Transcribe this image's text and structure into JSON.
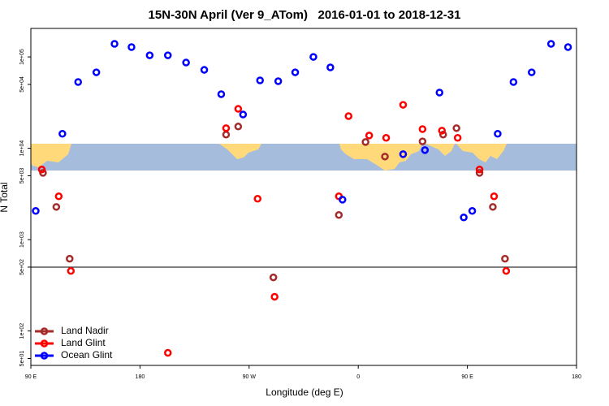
{
  "chart_data": {
    "type": "scatter",
    "title": "15N-30N April (Ver 9_ATom)   2016-01-01 to 2018-12-31",
    "x_label": "Longitude (deg E)",
    "y_label": "N Total",
    "log_y": true,
    "xlim": [
      90,
      540
    ],
    "ylim": [
      42,
      205000
    ],
    "xticks": [
      {
        "value": 90,
        "label": "90 E"
      },
      {
        "value": 180,
        "label": "180"
      },
      {
        "value": 270,
        "label": "90 W"
      },
      {
        "value": 360,
        "label": "0"
      },
      {
        "value": 450,
        "label": "90 E"
      },
      {
        "value": 540,
        "label": "180"
      }
    ],
    "yticks": [
      {
        "value": 50,
        "label": "5e+01"
      },
      {
        "value": 100,
        "label": "1e+02"
      },
      {
        "value": 500,
        "label": "5e+02"
      },
      {
        "value": 1000,
        "label": "1e+03"
      },
      {
        "value": 5000,
        "label": "5e+03"
      },
      {
        "value": 10000,
        "label": "1e+04"
      },
      {
        "value": 50000,
        "label": "5e+04"
      },
      {
        "value": 100000,
        "label": "1e+05"
      }
    ],
    "hline": 500,
    "legend": "lower left",
    "series": [
      {
        "name": "Land Nadir",
        "color": "#a52a2a",
        "x": [
          100,
          111,
          122,
          251,
          261,
          290,
          344,
          366,
          382,
          413,
          430,
          441,
          460,
          471,
          481
        ],
        "values": [
          5380,
          2280,
          618,
          14100,
          17300,
          386,
          1860,
          11700,
          8110,
          11900,
          14100,
          16600,
          5380,
          2280,
          618
        ]
      },
      {
        "name": "Land Glint",
        "color": "#ff0000",
        "x": [
          99,
          113,
          123,
          203,
          251,
          261,
          277,
          291,
          344,
          352,
          369,
          383,
          397,
          413,
          429,
          442,
          460,
          472,
          482
        ],
        "values": [
          5850,
          2980,
          454,
          57.7,
          16600,
          27000,
          2800,
          237,
          2980,
          22500,
          13800,
          13000,
          29900,
          16200,
          15600,
          13000,
          5850,
          2980,
          454
        ]
      },
      {
        "name": "Ocean Glint",
        "color": "#0000ff",
        "x": [
          94,
          116,
          129,
          144,
          159,
          173,
          188,
          203,
          218,
          233,
          247,
          265,
          279,
          294,
          308,
          323,
          337,
          347,
          397,
          415,
          427,
          447,
          454,
          475,
          488,
          503,
          519,
          533
        ],
        "values": [
          2060,
          14400,
          53100,
          67800,
          139000,
          128000,
          104000,
          104000,
          86700,
          72100,
          39100,
          23400,
          55300,
          54200,
          67800,
          100000,
          76700,
          2740,
          8610,
          9550,
          40700,
          1750,
          2060,
          14400,
          53100,
          67800,
          139000,
          128000
        ]
      }
    ]
  }
}
